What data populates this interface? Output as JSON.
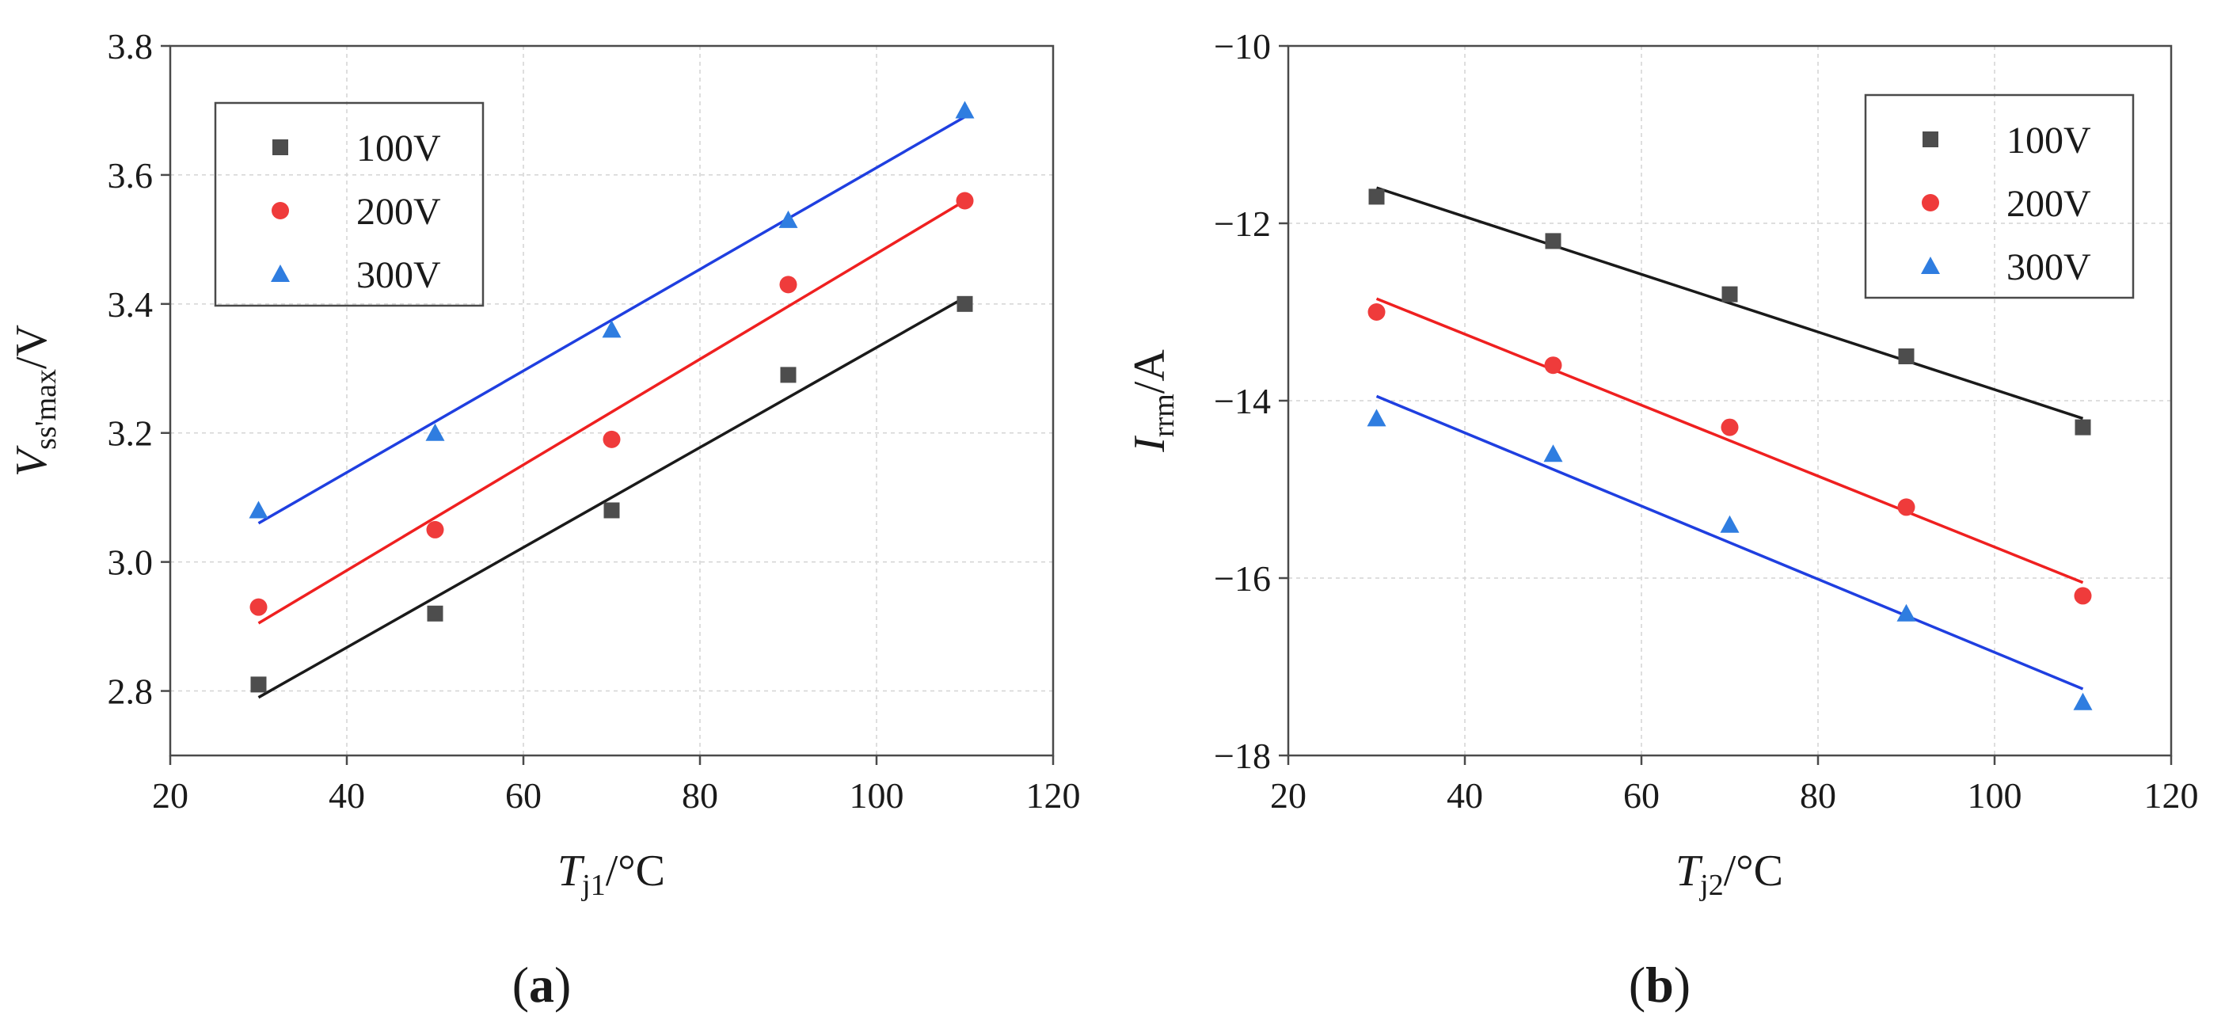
{
  "chart_data": [
    {
      "type": "scatter",
      "panel_label": "(a)",
      "panel_text": "a",
      "xlabel_main": "T",
      "xlabel_sub": "j1",
      "xlabel_unit": "/°C",
      "ylabel_main": "V",
      "ylabel_sub": "ss'max",
      "ylabel_unit": "/V",
      "xlim": [
        20,
        120
      ],
      "ylim": [
        2.7,
        3.8
      ],
      "xticks": [
        20,
        40,
        60,
        80,
        100,
        120
      ],
      "yticks": [
        2.8,
        3.0,
        3.2,
        3.4,
        3.6,
        3.8
      ],
      "ytick_labels": [
        "2.8",
        "3.0",
        "3.2",
        "3.4",
        "3.6",
        "3.8"
      ],
      "legend_position": "top-left",
      "grid": true,
      "series": [
        {
          "name": "100V",
          "marker": "square",
          "color": "#4d4d4d",
          "line_color": "#1a1a1a",
          "x": [
            30,
            50,
            70,
            90,
            110
          ],
          "y": [
            2.81,
            2.92,
            3.08,
            3.29,
            3.4
          ],
          "fit": {
            "x": [
              30,
              110
            ],
            "y": [
              2.79,
              3.41
            ]
          }
        },
        {
          "name": "200V",
          "marker": "circle",
          "color": "#ef3b3b",
          "line_color": "#ef2020",
          "x": [
            30,
            50,
            70,
            90,
            110
          ],
          "y": [
            2.93,
            3.05,
            3.19,
            3.43,
            3.56
          ],
          "fit": {
            "x": [
              30,
              110
            ],
            "y": [
              2.905,
              3.56
            ]
          }
        },
        {
          "name": "300V",
          "marker": "triangle",
          "color": "#2f7de0",
          "line_color": "#1f3fe0",
          "x": [
            30,
            50,
            70,
            90,
            110
          ],
          "y": [
            3.08,
            3.2,
            3.36,
            3.53,
            3.7
          ],
          "fit": {
            "x": [
              30,
              110
            ],
            "y": [
              3.06,
              3.69
            ]
          }
        }
      ]
    },
    {
      "type": "scatter",
      "panel_label": "(b)",
      "panel_text": "b",
      "xlabel_main": "T",
      "xlabel_sub": "j2",
      "xlabel_unit": "/°C",
      "ylabel_main": "I",
      "ylabel_sub": "rrm",
      "ylabel_unit": "/A",
      "xlim": [
        20,
        120
      ],
      "ylim": [
        -18,
        -10
      ],
      "xticks": [
        20,
        40,
        60,
        80,
        100,
        120
      ],
      "yticks": [
        -18,
        -16,
        -14,
        -12,
        -10
      ],
      "ytick_labels": [
        "−18",
        "−16",
        "−14",
        "−12",
        "−10"
      ],
      "legend_position": "top-right",
      "grid": true,
      "series": [
        {
          "name": "100V",
          "marker": "square",
          "color": "#4d4d4d",
          "line_color": "#1a1a1a",
          "x": [
            30,
            50,
            70,
            90,
            110
          ],
          "y": [
            -11.7,
            -12.2,
            -12.8,
            -13.5,
            -14.3
          ],
          "fit": {
            "x": [
              30,
              110
            ],
            "y": [
              -11.6,
              -14.2
            ]
          }
        },
        {
          "name": "200V",
          "marker": "circle",
          "color": "#ef3b3b",
          "line_color": "#ef2020",
          "x": [
            30,
            50,
            70,
            90,
            110
          ],
          "y": [
            -13.0,
            -13.6,
            -14.3,
            -15.2,
            -16.2
          ],
          "fit": {
            "x": [
              30,
              110
            ],
            "y": [
              -12.85,
              -16.05
            ]
          }
        },
        {
          "name": "300V",
          "marker": "triangle",
          "color": "#2f7de0",
          "line_color": "#1f3fe0",
          "x": [
            30,
            50,
            70,
            90,
            110
          ],
          "y": [
            -14.2,
            -14.6,
            -15.4,
            -16.4,
            -17.4
          ],
          "fit": {
            "x": [
              30,
              110
            ],
            "y": [
              -13.95,
              -17.25
            ]
          }
        }
      ]
    }
  ]
}
